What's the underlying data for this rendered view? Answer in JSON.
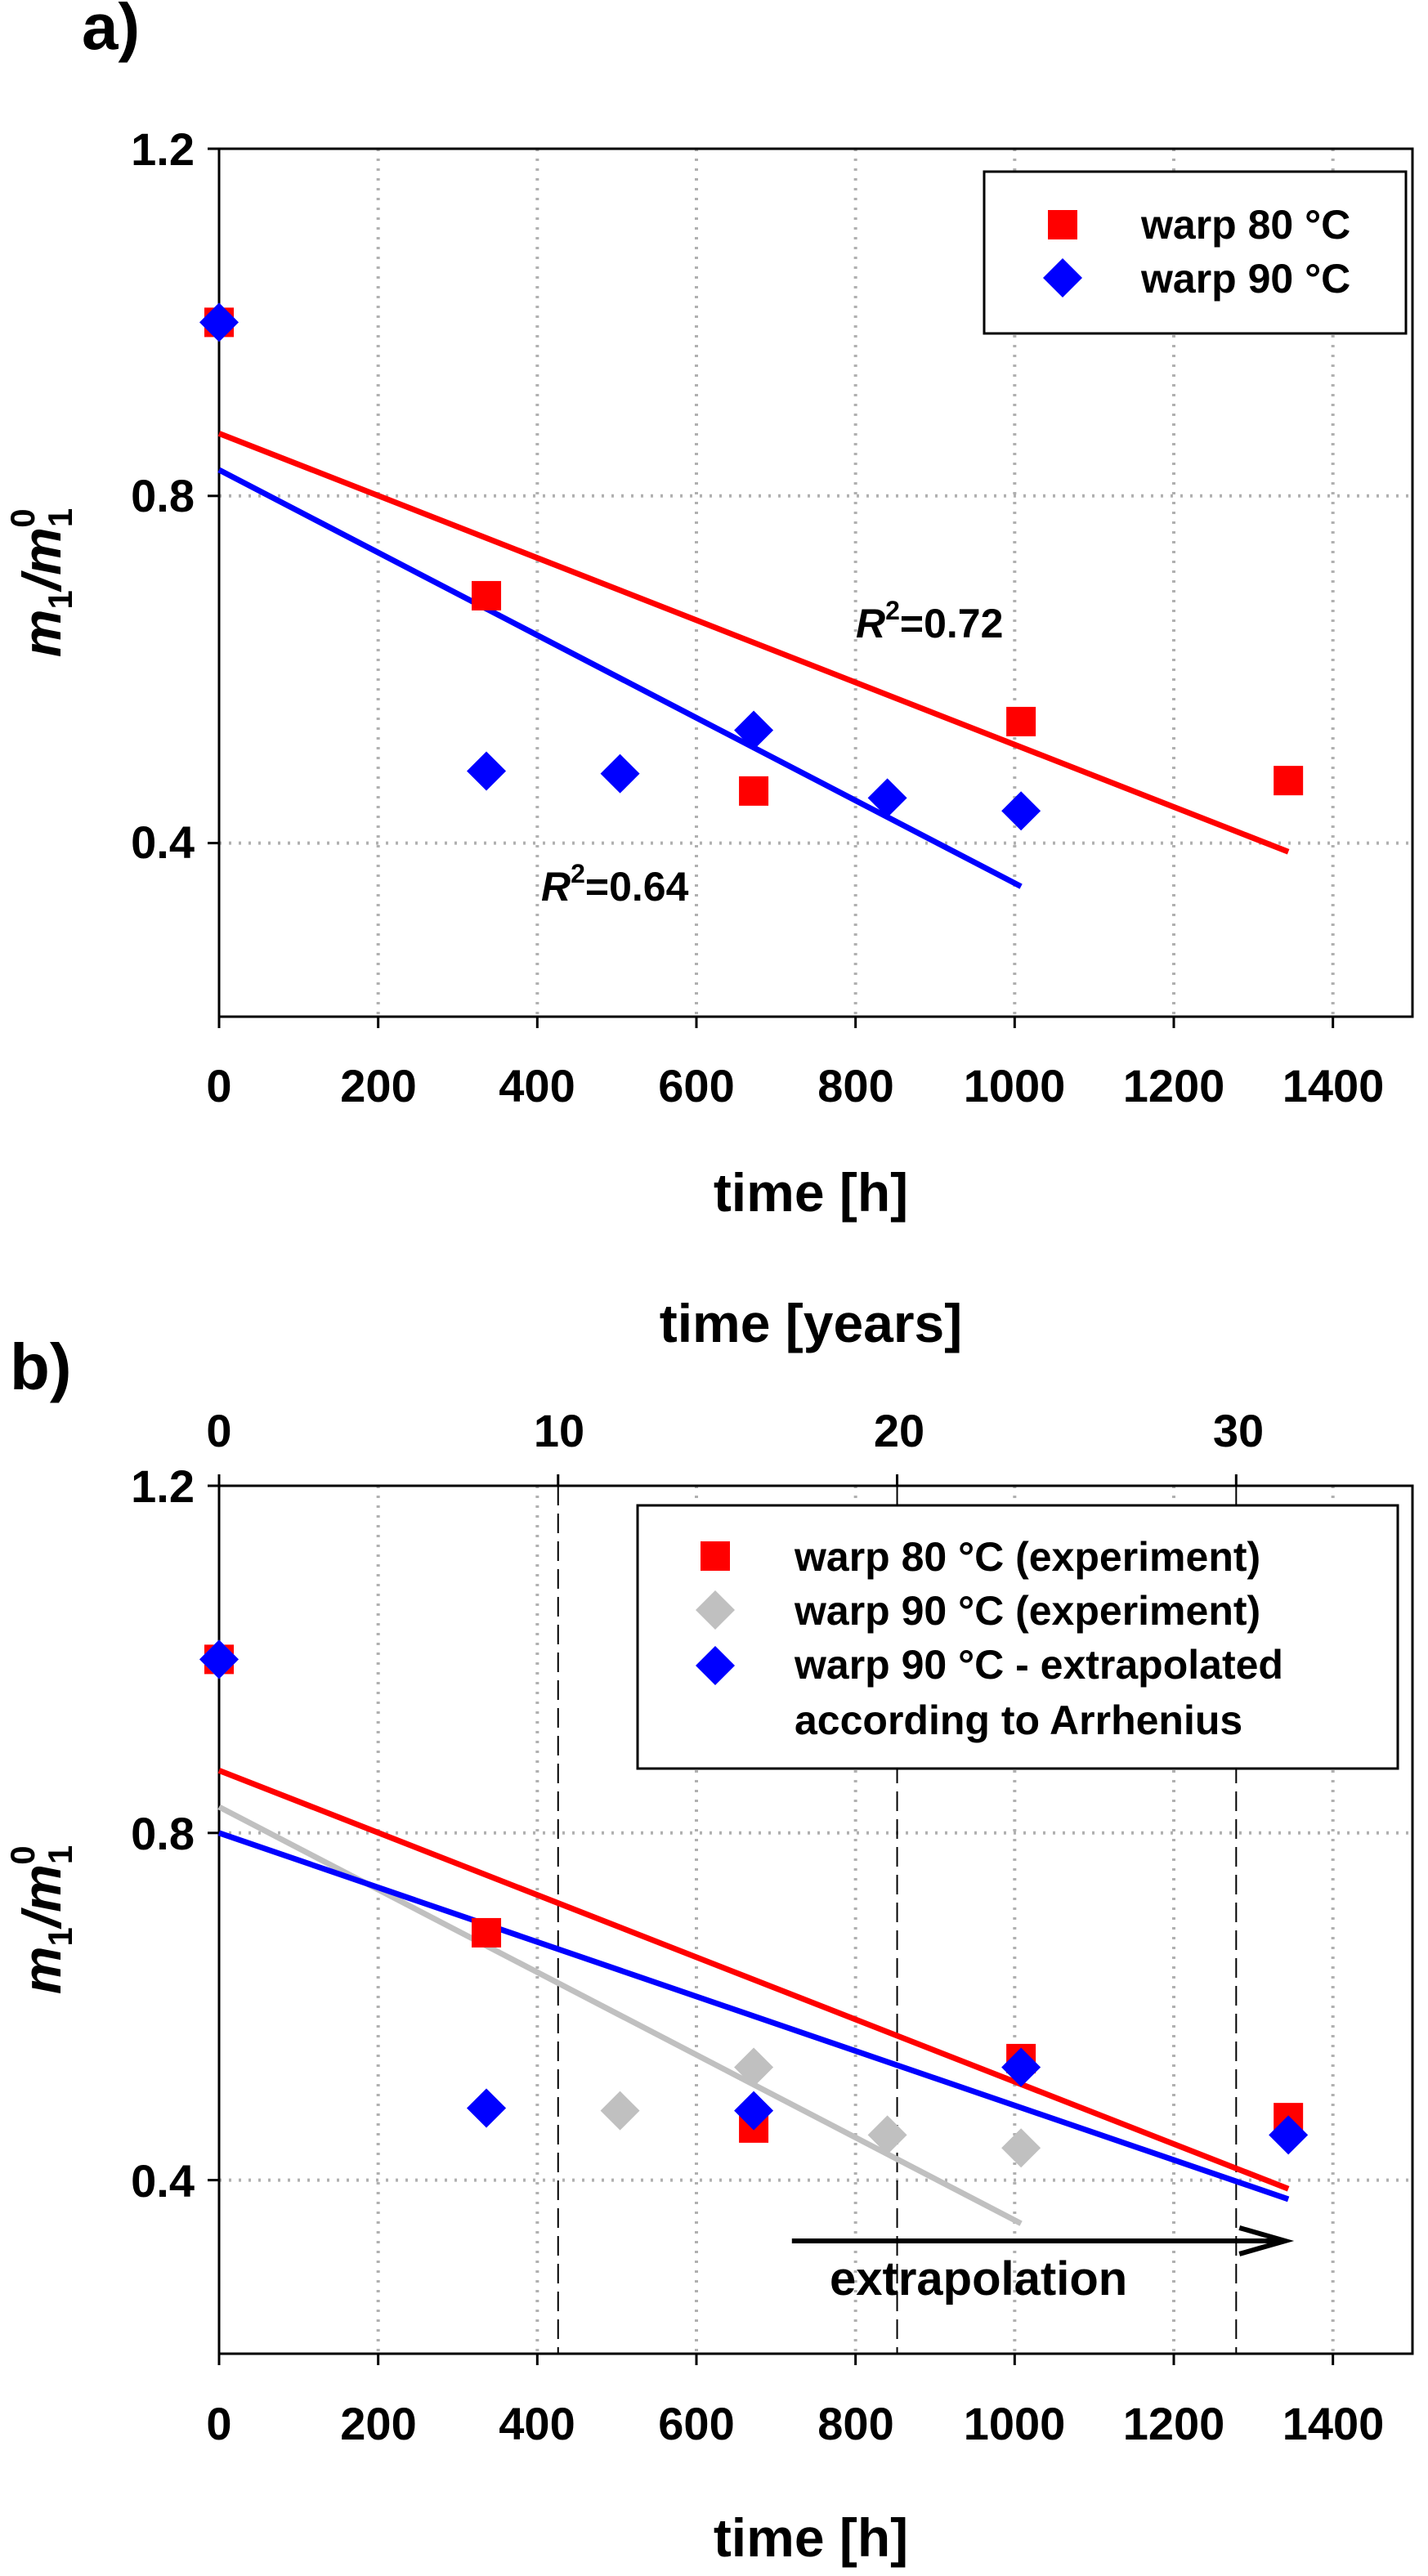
{
  "chart_data": [
    {
      "panel": "a)",
      "type": "scatter",
      "title": "",
      "xlabel": "time [h]",
      "ylabel_main": "m",
      "ylabel_sub1": "1",
      "ylabel_slash": "/m",
      "ylabel_sub2": "1",
      "ylabel_sup": "0",
      "xlim": [
        0,
        1500
      ],
      "ylim": [
        0.2,
        1.2
      ],
      "xticks": [
        0,
        200,
        400,
        600,
        800,
        1000,
        1200,
        1400
      ],
      "xtick_labels": [
        "0",
        "200",
        "400",
        "600",
        "800",
        "1000",
        "1200",
        "1400"
      ],
      "yticks": [
        0.4,
        0.8,
        1.2
      ],
      "ytick_labels": [
        "0.4",
        "0.8",
        "1.2"
      ],
      "grid": true,
      "legend_position": "top-right",
      "series": [
        {
          "name": "warp 80 °C",
          "marker": "square",
          "color": "#ff0000",
          "x": [
            0,
            336,
            672,
            1008,
            1344
          ],
          "y": [
            1.0,
            0.685,
            0.46,
            0.54,
            0.472
          ]
        },
        {
          "name": "warp 90 °C",
          "marker": "diamond",
          "color": "#0000ff",
          "x": [
            0,
            336,
            504,
            672,
            840,
            1008
          ],
          "y": [
            1.0,
            0.483,
            0.48,
            0.53,
            0.452,
            0.437
          ]
        }
      ],
      "fits": [
        {
          "color": "#ff0000",
          "x": [
            0,
            1344
          ],
          "y": [
            0.872,
            0.39
          ]
        },
        {
          "color": "#0000ff",
          "x": [
            0,
            1008
          ],
          "y": [
            0.83,
            0.35
          ]
        }
      ],
      "annotations": [
        {
          "r": "R",
          "sup": "2",
          "value": "=0.72",
          "x": 800,
          "y": 0.625
        },
        {
          "r": "R",
          "sup": "2",
          "value": "=0.64",
          "x": 405,
          "y": 0.325
        }
      ]
    },
    {
      "panel": "b)",
      "type": "scatter",
      "title": "",
      "xlabel": "time [h]",
      "xlabel_top": "time [years]",
      "ylabel_main": "m",
      "ylabel_sub1": "1",
      "ylabel_slash": "/m",
      "ylabel_sub2": "1",
      "ylabel_sup": "0",
      "xlim": [
        0,
        1500
      ],
      "ylim": [
        0.2,
        1.2
      ],
      "xticks": [
        0,
        200,
        400,
        600,
        800,
        1000,
        1200,
        1400
      ],
      "xtick_labels": [
        "0",
        "200",
        "400",
        "600",
        "800",
        "1000",
        "1200",
        "1400"
      ],
      "yticks": [
        0.4,
        0.8,
        1.2
      ],
      "ytick_labels": [
        "0.4",
        "0.8",
        "1.2"
      ],
      "top_xlim": [
        0,
        35.2
      ],
      "top_xticks": [
        0,
        10,
        20,
        30
      ],
      "top_xtick_labels": [
        "0",
        "10",
        "20",
        "30"
      ],
      "grid": true,
      "legend_position": "top-right",
      "series": [
        {
          "name": "warp 80 °C (experiment)",
          "marker": "square",
          "color": "#ff0000",
          "x": [
            0,
            336,
            672,
            1008,
            1344
          ],
          "y": [
            1.0,
            0.685,
            0.46,
            0.54,
            0.472
          ]
        },
        {
          "name": "warp 90 °C (experiment)",
          "marker": "diamond",
          "color": "#c0c0c0",
          "x": [
            0,
            336,
            504,
            672,
            840,
            1008
          ],
          "y": [
            1.0,
            0.483,
            0.48,
            0.53,
            0.452,
            0.437
          ]
        },
        {
          "name": "warp 90 °C - extrapolated",
          "name_line2": "according to Arrhenius",
          "marker": "diamond",
          "color": "#0000ff",
          "x": [
            0,
            336,
            672,
            1008,
            1344
          ],
          "y": [
            1.0,
            0.483,
            0.48,
            0.53,
            0.452
          ]
        }
      ],
      "fits": [
        {
          "color": "#c0c0c0",
          "x": [
            0,
            1008
          ],
          "y": [
            0.83,
            0.35
          ]
        },
        {
          "color": "#ff0000",
          "x": [
            0,
            1344
          ],
          "y": [
            0.872,
            0.39
          ]
        },
        {
          "color": "#0000ff",
          "x": [
            0,
            1344
          ],
          "y": [
            0.8,
            0.378
          ]
        }
      ],
      "vlines_years": [
        10,
        20,
        30
      ],
      "arrow": {
        "label": "extrapolation",
        "x_start": 720,
        "x_end": 1340,
        "y": 0.33
      }
    }
  ]
}
